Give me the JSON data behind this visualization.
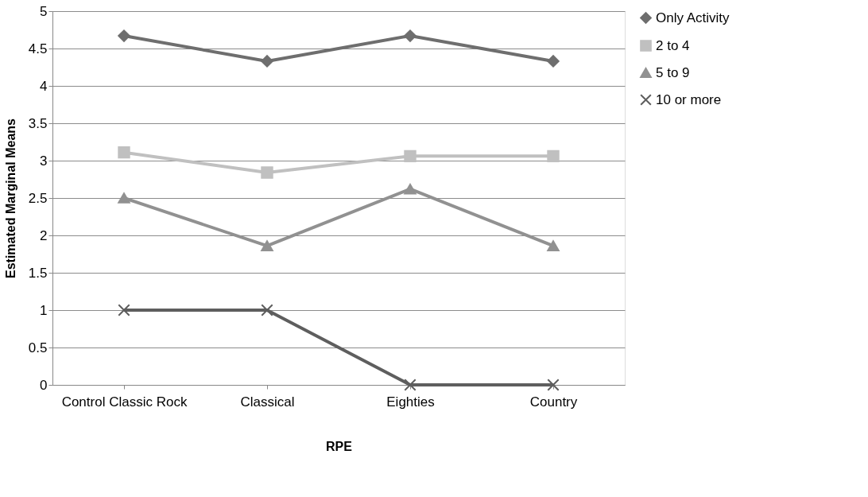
{
  "chart_data": {
    "type": "line",
    "xlabel": "RPE",
    "ylabel": "Estimated Marginal Means",
    "categories": [
      "Control Classic Rock",
      "Classical",
      "Eighties",
      "Country"
    ],
    "series": [
      {
        "name": "Only Activity",
        "color": "#6e6e6e",
        "marker": "diamond",
        "values": [
          4.67,
          4.33,
          4.67,
          4.33
        ]
      },
      {
        "name": "2 to 4",
        "color": "#c0c0c0",
        "marker": "square",
        "values": [
          3.11,
          2.84,
          3.06,
          3.06
        ]
      },
      {
        "name": "5 to 9",
        "color": "#919191",
        "marker": "triangle",
        "values": [
          2.5,
          1.86,
          2.62,
          1.86
        ]
      },
      {
        "name": "10 or more",
        "color": "#5e5e5e",
        "marker": "cross",
        "values": [
          1,
          1,
          0,
          0
        ]
      }
    ],
    "ylim": [
      0,
      5
    ],
    "yticks": [
      0,
      0.5,
      1,
      1.5,
      2,
      2.5,
      3,
      3.5,
      4,
      4.5,
      5
    ],
    "grid": "y",
    "legend": "right",
    "line_style": "solid"
  }
}
